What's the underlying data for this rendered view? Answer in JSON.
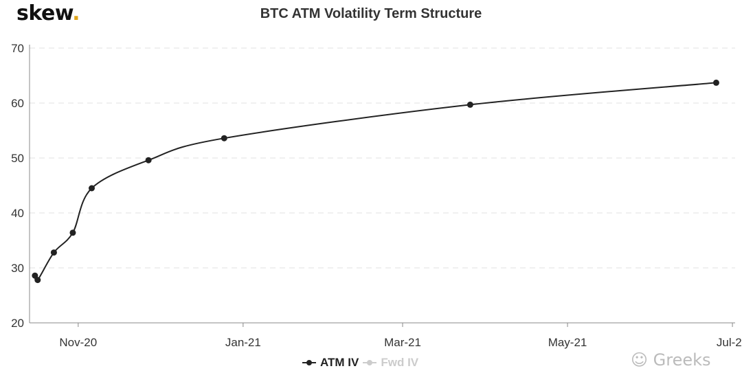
{
  "logo": {
    "text": "skew",
    "dot": "."
  },
  "watermark": "Greeks",
  "chart_data": {
    "type": "line",
    "title": "BTC ATM Volatility Term Structure",
    "xlabel": "",
    "ylabel": "",
    "x_ticks": [
      {
        "date": "2020-11-01",
        "label": "Nov-20"
      },
      {
        "date": "2021-01-01",
        "label": "Jan-21"
      },
      {
        "date": "2021-03-01",
        "label": "Mar-21"
      },
      {
        "date": "2021-05-01",
        "label": "May-21"
      },
      {
        "date": "2021-07-01",
        "label": "Jul-21"
      }
    ],
    "xlim": [
      "2020-10-14",
      "2021-07-02"
    ],
    "ylim": [
      20,
      70
    ],
    "y_ticks": [
      20,
      30,
      40,
      50,
      60,
      70
    ],
    "grid": "horizontal dashed",
    "legend": "bottom-center",
    "series": [
      {
        "name": "ATM IV",
        "color": "#222222",
        "visible": true,
        "x": [
          "2020-10-16",
          "2020-10-17",
          "2020-10-23",
          "2020-10-30",
          "2020-11-06",
          "2020-11-27",
          "2020-12-25",
          "2021-03-26",
          "2021-06-25"
        ],
        "values": [
          28.6,
          27.8,
          32.8,
          36.4,
          44.5,
          49.6,
          53.6,
          59.7,
          63.7
        ]
      },
      {
        "name": "Fwd IV",
        "color": "#cccccc",
        "visible": false,
        "x": [],
        "values": []
      }
    ]
  }
}
